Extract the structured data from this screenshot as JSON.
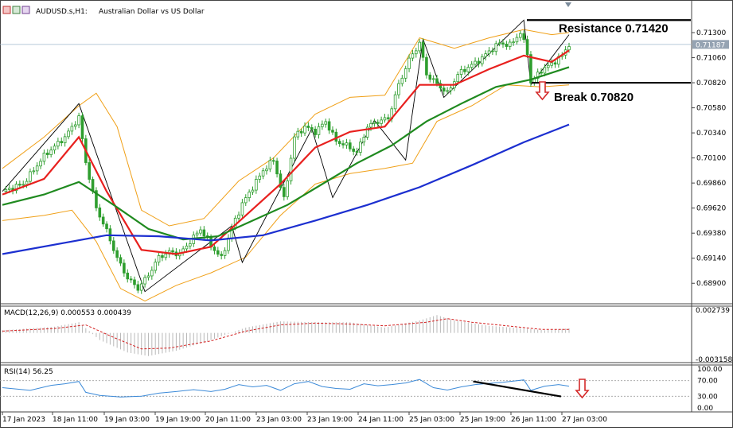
{
  "header": {
    "symbol": "AUDUSD.s,H1:",
    "description": "Australian Dollar vs US Dollar"
  },
  "annotations": {
    "resistance_label": "Resistance 0.71420",
    "break_label": "Break 0.70820"
  },
  "price_tag": "0.71187",
  "colors": {
    "candle": "#2e9e2e",
    "ema_fast": "#e8201e",
    "ema_mid": "#1f8a1f",
    "ma_slow": "#1c2fd0",
    "bands": "#f0a018",
    "zigzag": "#000000",
    "macd_signal": "#d42020",
    "rsi": "#3c8ad8",
    "arrow": "#d42a2a"
  },
  "panels": {
    "macd": {
      "label": "MACD(12,26,9) 0.000553 0.000439",
      "top_label": "0.002739",
      "bottom_label": "-0.003158"
    },
    "rsi": {
      "label": "RSI(14) 56.25",
      "levels": [
        "100.00",
        "70.00",
        "30.00",
        "0.00"
      ]
    }
  },
  "chart_data": {
    "type": "candlestick",
    "title": "AUDUSD.s,H1: Australian Dollar vs US Dollar",
    "y_ticks": [
      "0.71300",
      "0.71060",
      "0.70820",
      "0.70580",
      "0.70340",
      "0.70100",
      "0.69860",
      "0.69620",
      "0.69380",
      "0.69140",
      "0.68900"
    ],
    "ylim": [
      0.6878,
      0.7146
    ],
    "x_ticks": [
      "17 Jan 2023",
      "18 Jan 11:00",
      "19 Jan 03:00",
      "19 Jan 19:00",
      "20 Jan 11:00",
      "23 Jan 03:00",
      "23 Jan 19:00",
      "24 Jan 11:00",
      "25 Jan 03:00",
      "25 Jan 19:00",
      "26 Jan 11:00",
      "27 Jan 03:00"
    ],
    "last_price": 0.71187,
    "levels": [
      {
        "name": "Resistance",
        "value": 0.7142
      },
      {
        "name": "Break",
        "value": 0.7082
      }
    ],
    "close_path": [
      [
        0,
        0.6978
      ],
      [
        6,
        0.6985
      ],
      [
        12,
        0.7012
      ],
      [
        18,
        0.703
      ],
      [
        22,
        0.7049
      ],
      [
        24,
        0.7006
      ],
      [
        27,
        0.6962
      ],
      [
        30,
        0.694
      ],
      [
        33,
        0.6914
      ],
      [
        36,
        0.6895
      ],
      [
        39,
        0.6885
      ],
      [
        42,
        0.6898
      ],
      [
        45,
        0.6915
      ],
      [
        48,
        0.692
      ],
      [
        51,
        0.6918
      ],
      [
        54,
        0.693
      ],
      [
        57,
        0.6942
      ],
      [
        60,
        0.6926
      ],
      [
        63,
        0.6914
      ],
      [
        66,
        0.6943
      ],
      [
        69,
        0.6966
      ],
      [
        72,
        0.6982
      ],
      [
        75,
        0.6998
      ],
      [
        78,
        0.7008
      ],
      [
        81,
        0.697
      ],
      [
        84,
        0.703
      ],
      [
        87,
        0.704
      ],
      [
        90,
        0.7035
      ],
      [
        93,
        0.7045
      ],
      [
        96,
        0.7026
      ],
      [
        99,
        0.7022
      ],
      [
        102,
        0.7015
      ],
      [
        105,
        0.704
      ],
      [
        108,
        0.7045
      ],
      [
        111,
        0.7048
      ],
      [
        114,
        0.708
      ],
      [
        117,
        0.7104
      ],
      [
        120,
        0.712
      ],
      [
        122,
        0.709
      ],
      [
        125,
        0.7081
      ],
      [
        128,
        0.7072
      ],
      [
        131,
        0.709
      ],
      [
        134,
        0.7097
      ],
      [
        137,
        0.7103
      ],
      [
        140,
        0.7112
      ],
      [
        143,
        0.712
      ],
      [
        146,
        0.7118
      ],
      [
        149,
        0.713
      ],
      [
        151,
        0.7111
      ],
      [
        152,
        0.7082
      ],
      [
        155,
        0.7094
      ],
      [
        158,
        0.71
      ],
      [
        161,
        0.7108
      ],
      [
        163,
        0.7119
      ]
    ],
    "series": [
      {
        "name": "EMA fast",
        "color_key": "ema_fast",
        "points": [
          [
            0,
            0.6975
          ],
          [
            12,
            0.699
          ],
          [
            22,
            0.703
          ],
          [
            30,
            0.6978
          ],
          [
            40,
            0.6922
          ],
          [
            50,
            0.6918
          ],
          [
            60,
            0.6925
          ],
          [
            70,
            0.6955
          ],
          [
            80,
            0.6985
          ],
          [
            90,
            0.702
          ],
          [
            100,
            0.7035
          ],
          [
            110,
            0.704
          ],
          [
            120,
            0.708
          ],
          [
            130,
            0.708
          ],
          [
            140,
            0.7095
          ],
          [
            150,
            0.7108
          ],
          [
            158,
            0.7102
          ],
          [
            163,
            0.7113
          ]
        ]
      },
      {
        "name": "EMA mid",
        "color_key": "ema_mid",
        "points": [
          [
            0,
            0.6965
          ],
          [
            12,
            0.6975
          ],
          [
            22,
            0.6987
          ],
          [
            32,
            0.6965
          ],
          [
            42,
            0.6942
          ],
          [
            52,
            0.6932
          ],
          [
            62,
            0.6935
          ],
          [
            72,
            0.695
          ],
          [
            82,
            0.6965
          ],
          [
            92,
            0.6985
          ],
          [
            102,
            0.7005
          ],
          [
            112,
            0.7022
          ],
          [
            122,
            0.7045
          ],
          [
            132,
            0.7062
          ],
          [
            142,
            0.7078
          ],
          [
            152,
            0.7085
          ],
          [
            163,
            0.7097
          ]
        ]
      },
      {
        "name": "MA slow",
        "color_key": "ma_slow",
        "points": [
          [
            0,
            0.6918
          ],
          [
            20,
            0.693
          ],
          [
            30,
            0.6936
          ],
          [
            45,
            0.6935
          ],
          [
            60,
            0.6931
          ],
          [
            75,
            0.6936
          ],
          [
            90,
            0.695
          ],
          [
            105,
            0.6965
          ],
          [
            120,
            0.6982
          ],
          [
            135,
            0.7003
          ],
          [
            150,
            0.7025
          ],
          [
            163,
            0.7042
          ]
        ]
      },
      {
        "name": "Upper band",
        "color_key": "bands",
        "points": [
          [
            0,
            0.7
          ],
          [
            12,
            0.703
          ],
          [
            22,
            0.706
          ],
          [
            27,
            0.7072
          ],
          [
            33,
            0.704
          ],
          [
            40,
            0.696
          ],
          [
            48,
            0.6945
          ],
          [
            58,
            0.6952
          ],
          [
            68,
            0.6988
          ],
          [
            78,
            0.701
          ],
          [
            90,
            0.7052
          ],
          [
            100,
            0.7068
          ],
          [
            110,
            0.707
          ],
          [
            120,
            0.7125
          ],
          [
            130,
            0.7115
          ],
          [
            140,
            0.7125
          ],
          [
            150,
            0.7133
          ],
          [
            158,
            0.7128
          ],
          [
            163,
            0.713
          ]
        ]
      },
      {
        "name": "Lower band",
        "color_key": "bands",
        "points": [
          [
            0,
            0.695
          ],
          [
            12,
            0.6955
          ],
          [
            20,
            0.696
          ],
          [
            27,
            0.693
          ],
          [
            34,
            0.6885
          ],
          [
            41,
            0.6873
          ],
          [
            50,
            0.6888
          ],
          [
            60,
            0.69
          ],
          [
            70,
            0.6915
          ],
          [
            80,
            0.6955
          ],
          [
            90,
            0.6985
          ],
          [
            100,
            0.6995
          ],
          [
            110,
            0.7
          ],
          [
            118,
            0.7005
          ],
          [
            125,
            0.7045
          ],
          [
            135,
            0.706
          ],
          [
            145,
            0.708
          ],
          [
            155,
            0.7078
          ],
          [
            163,
            0.708
          ]
        ]
      },
      {
        "name": "ZigZag",
        "color_key": "zigzag",
        "points": [
          [
            0,
            0.6978
          ],
          [
            22,
            0.7062
          ],
          [
            41,
            0.6882
          ],
          [
            66,
            0.6945
          ],
          [
            69,
            0.691
          ],
          [
            89,
            0.7038
          ],
          [
            95,
            0.6972
          ],
          [
            107,
            0.7046
          ],
          [
            116,
            0.7008
          ],
          [
            121,
            0.7124
          ],
          [
            127,
            0.7068
          ],
          [
            150,
            0.7142
          ],
          [
            152,
            0.708
          ],
          [
            163,
            0.7128
          ]
        ]
      }
    ],
    "macd": {
      "label": "MACD(12,26,9)",
      "values": [
        0.000553,
        0.000439
      ],
      "ylim": [
        -0.003158,
        0.002739
      ],
      "histogram_path": [
        [
          0,
          0.0003
        ],
        [
          15,
          0.0007
        ],
        [
          22,
          0.0012
        ],
        [
          28,
          -0.0008
        ],
        [
          36,
          -0.0022
        ],
        [
          42,
          -0.0026
        ],
        [
          50,
          -0.002
        ],
        [
          60,
          -0.0008
        ],
        [
          70,
          0.0006
        ],
        [
          80,
          0.0013
        ],
        [
          90,
          0.0012
        ],
        [
          100,
          0.0012
        ],
        [
          110,
          0.0006
        ],
        [
          120,
          0.0014
        ],
        [
          125,
          0.002
        ],
        [
          130,
          0.0014
        ],
        [
          140,
          0.0008
        ],
        [
          150,
          0.0005
        ],
        [
          156,
          0.0003
        ],
        [
          163,
          0.0005
        ]
      ],
      "signal_path": [
        [
          0,
          0.0002
        ],
        [
          15,
          0.0005
        ],
        [
          24,
          0.0009
        ],
        [
          32,
          -0.0005
        ],
        [
          40,
          -0.0018
        ],
        [
          48,
          -0.0017
        ],
        [
          60,
          -0.0009
        ],
        [
          70,
          0.0002
        ],
        [
          80,
          0.0009
        ],
        [
          90,
          0.0011
        ],
        [
          100,
          0.001
        ],
        [
          110,
          0.0008
        ],
        [
          122,
          0.0012
        ],
        [
          128,
          0.0016
        ],
        [
          135,
          0.0012
        ],
        [
          145,
          0.0008
        ],
        [
          155,
          0.0004
        ],
        [
          163,
          0.0004
        ]
      ]
    },
    "rsi": {
      "label": "RSI(14)",
      "value": 56.25,
      "ylim": [
        0,
        100
      ],
      "path": [
        [
          0,
          52
        ],
        [
          8,
          45
        ],
        [
          14,
          58
        ],
        [
          18,
          62
        ],
        [
          22,
          68
        ],
        [
          24,
          40
        ],
        [
          28,
          32
        ],
        [
          34,
          28
        ],
        [
          40,
          30
        ],
        [
          45,
          38
        ],
        [
          50,
          42
        ],
        [
          55,
          47
        ],
        [
          60,
          42
        ],
        [
          64,
          48
        ],
        [
          68,
          60
        ],
        [
          72,
          54
        ],
        [
          76,
          58
        ],
        [
          80,
          45
        ],
        [
          84,
          62
        ],
        [
          88,
          68
        ],
        [
          92,
          55
        ],
        [
          96,
          50
        ],
        [
          100,
          48
        ],
        [
          104,
          62
        ],
        [
          108,
          57
        ],
        [
          112,
          60
        ],
        [
          116,
          64
        ],
        [
          120,
          73
        ],
        [
          124,
          52
        ],
        [
          128,
          46
        ],
        [
          132,
          54
        ],
        [
          136,
          60
        ],
        [
          140,
          63
        ],
        [
          144,
          66
        ],
        [
          148,
          70
        ],
        [
          150,
          72
        ],
        [
          152,
          45
        ],
        [
          156,
          56
        ],
        [
          160,
          60
        ],
        [
          163,
          56
        ]
      ],
      "trendline": [
        [
          140,
          72
        ],
        [
          160,
          54
        ]
      ]
    }
  }
}
